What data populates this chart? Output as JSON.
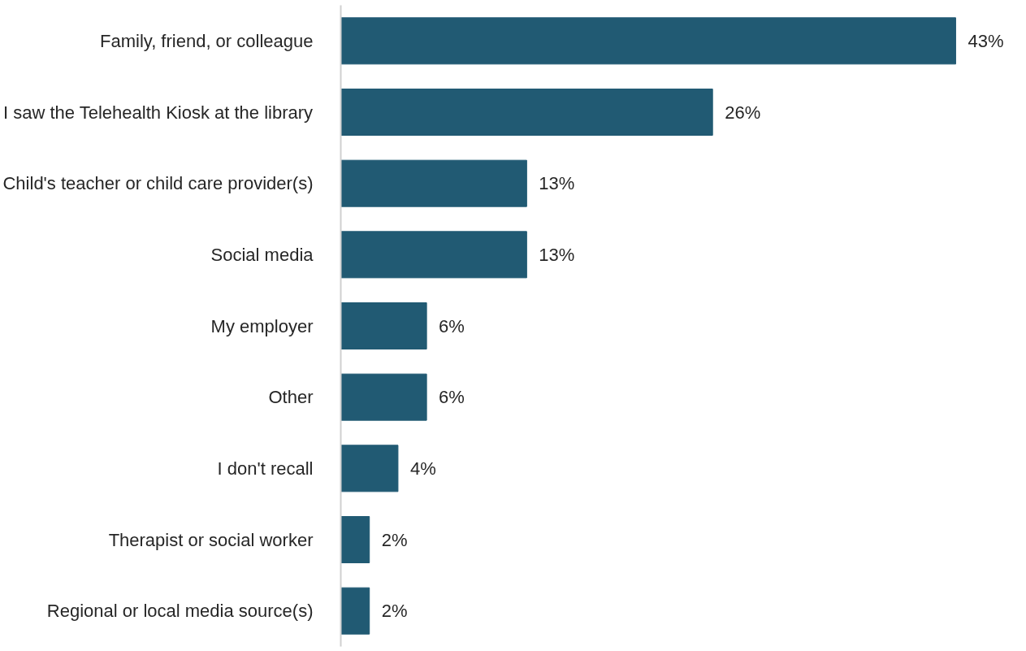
{
  "chart_data": {
    "type": "bar",
    "orientation": "horizontal",
    "categories": [
      "Family, friend, or colleague",
      "I saw the Telehealth Kiosk at the library",
      "Child's teacher or child care provider(s)",
      "Social media",
      "My employer",
      "Other",
      "I don't recall",
      "Therapist or social worker",
      "Regional or local media source(s)"
    ],
    "values": [
      43,
      26,
      13,
      13,
      6,
      6,
      4,
      2,
      2
    ],
    "value_labels": [
      "43%",
      "26%",
      "13%",
      "13%",
      "6%",
      "6%",
      "4%",
      "2%",
      "2%"
    ],
    "color": "#215a73"
  }
}
